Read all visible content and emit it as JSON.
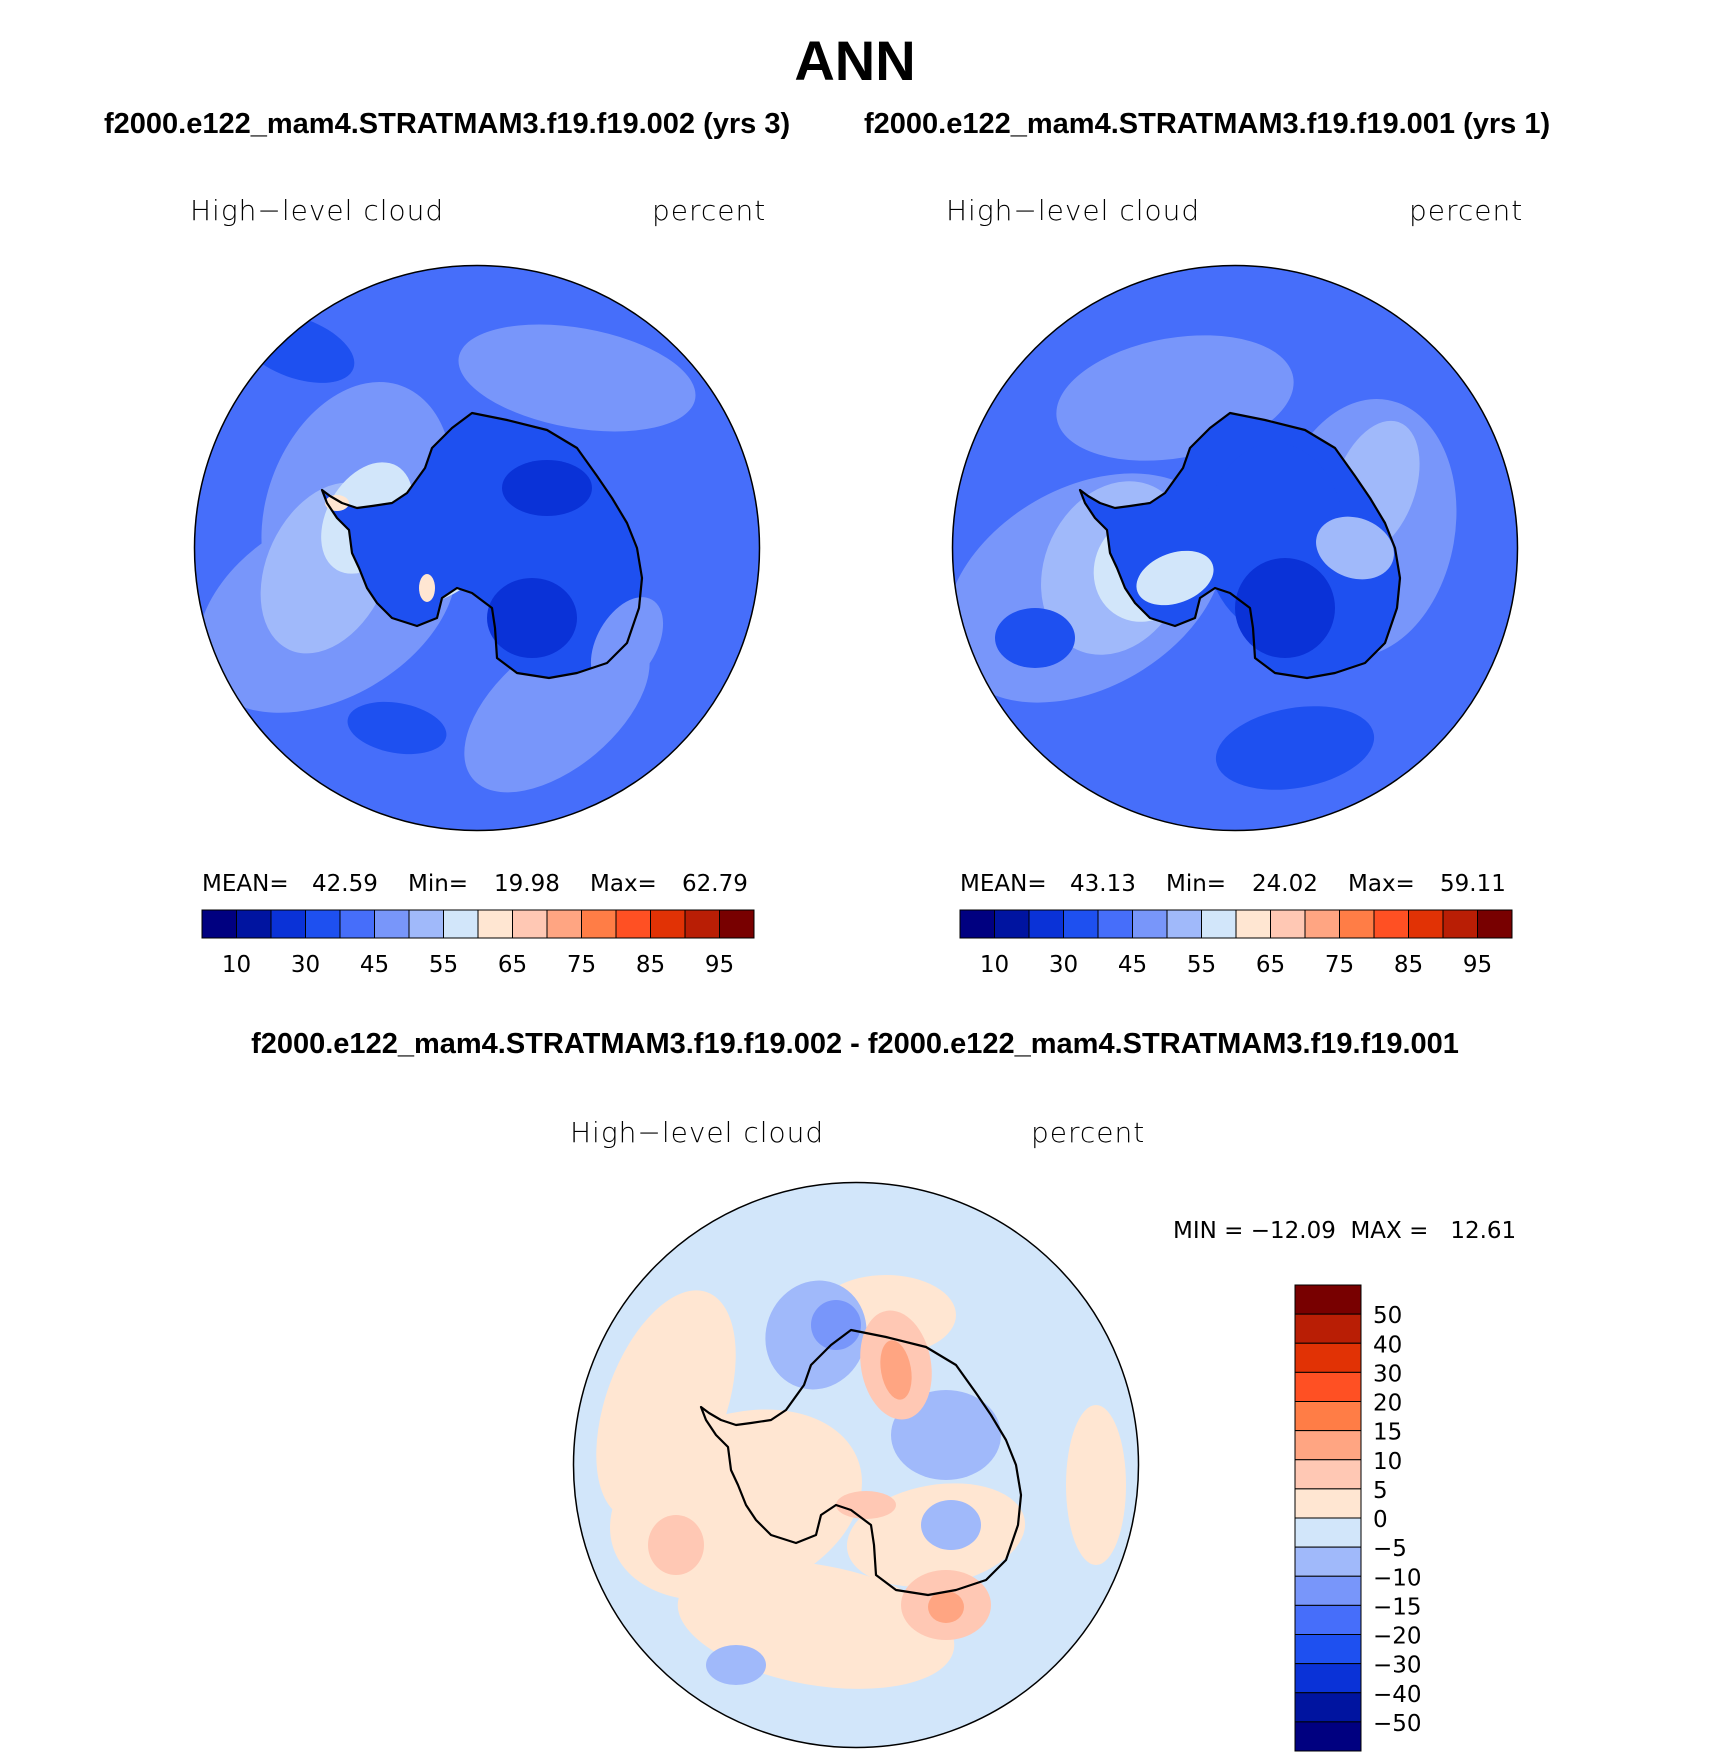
{
  "title": "ANN",
  "case_labels": {
    "left": "f2000.e122_mam4.STRATMAM3.f19.f19.002 (yrs 3)",
    "right": "f2000.e122_mam4.STRATMAM3.f19.f19.001 (yrs 1)"
  },
  "diff_title": "f2000.e122_mam4.STRATMAM3.f19.f19.002 - f2000.e122_mam4.STRATMAM3.f19.f19.001",
  "panels": [
    {
      "variable": "High−level cloud",
      "units": "percent",
      "stats": {
        "mean_label": "MEAN=",
        "mean": "42.59",
        "min_label": "Min=",
        "min": "19.98",
        "max_label": "Max=",
        "max": "62.79"
      }
    },
    {
      "variable": "High−level cloud",
      "units": "percent",
      "stats": {
        "mean_label": "MEAN=",
        "mean": "43.13",
        "min_label": "Min=",
        "min": "24.02",
        "max_label": "Max=",
        "max": "59.11"
      }
    }
  ],
  "diff_panel": {
    "variable": "High−level cloud",
    "units": "percent",
    "stats": "MIN = −12.09  MAX =   12.61"
  },
  "chart_data": [
    {
      "type": "heatmap",
      "projection": "south polar stereographic",
      "variable": "High-level cloud",
      "units": "percent",
      "mean": 42.59,
      "min": 19.98,
      "max": 62.79,
      "dominant_range": [
        30,
        45
      ],
      "colorbar": {
        "levels": [
          5,
          10,
          20,
          30,
          40,
          45,
          50,
          55,
          60,
          65,
          70,
          75,
          80,
          85,
          90,
          95
        ],
        "tick_labels": [
          "10",
          "30",
          "45",
          "55",
          "65",
          "75",
          "85",
          "95"
        ],
        "colors": [
          "#000080",
          "#0014A0",
          "#0A32D7",
          "#1E50F0",
          "#466EFA",
          "#7896FA",
          "#A0B9FA",
          "#D2E6FA",
          "#FFE6D2",
          "#FFC8B4",
          "#FFA582",
          "#FF7D46",
          "#FF5023",
          "#E13205",
          "#B91E05",
          "#780000"
        ]
      }
    },
    {
      "type": "heatmap",
      "projection": "south polar stereographic",
      "variable": "High-level cloud",
      "units": "percent",
      "mean": 43.13,
      "min": 24.02,
      "max": 59.11,
      "dominant_range": [
        30,
        45
      ]
    },
    {
      "type": "heatmap",
      "projection": "south polar stereographic",
      "variable": "High-level cloud",
      "units": "percent",
      "min": -12.09,
      "max": 12.61,
      "dominant_range": [
        -5,
        5
      ],
      "colorbar": {
        "tick_labels": [
          "50",
          "40",
          "30",
          "20",
          "15",
          "10",
          "5",
          "0",
          "−5",
          "−10",
          "−15",
          "−20",
          "−30",
          "−40",
          "−50"
        ],
        "colors": [
          "#780000",
          "#B91E05",
          "#E13205",
          "#FF5023",
          "#FF7D46",
          "#FFA582",
          "#FFC8B4",
          "#FFE6D2",
          "#D2E6FA",
          "#A0B9FA",
          "#7896FA",
          "#466EFA",
          "#1E50F0",
          "#0A32D7",
          "#0014A0",
          "#000080"
        ]
      }
    }
  ]
}
